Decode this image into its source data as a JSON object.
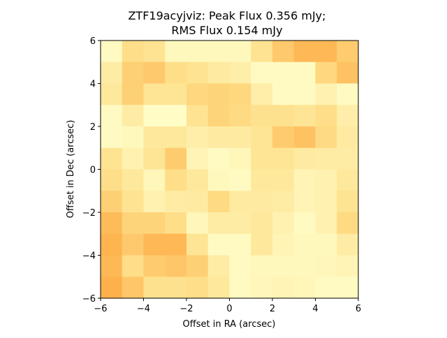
{
  "chart_data": {
    "type": "heatmap",
    "title": "ZTF19acyjviz: Peak Flux 0.356 mJy;",
    "subtitle": "RMS Flux 0.154 mJy",
    "xlabel": "Offset in RA (arcsec)",
    "ylabel": "Offset in Dec (arcsec)",
    "xlim": [
      -6,
      6
    ],
    "ylim": [
      -6,
      6
    ],
    "xticks": [
      -6,
      -4,
      -2,
      0,
      2,
      4,
      6
    ],
    "yticks": [
      -6,
      -4,
      -2,
      0,
      2,
      4,
      6
    ],
    "xtick_labels": [
      "−6",
      "−4",
      "−2",
      "0",
      "2",
      "4",
      "6"
    ],
    "ytick_labels": [
      "−6",
      "−4",
      "−2",
      "0",
      "2",
      "4",
      "6"
    ],
    "colormap": [
      "#ffffcc",
      "#fee08b",
      "#feb24c",
      "#fd8d3c"
    ],
    "grid": false,
    "rows_top_to_bottom": [
      [
        0.05,
        0.35,
        0.3,
        0.08,
        0.08,
        0.08,
        0.08,
        0.3,
        0.5,
        0.62,
        0.62,
        0.48
      ],
      [
        0.2,
        0.45,
        0.5,
        0.35,
        0.3,
        0.22,
        0.18,
        0.05,
        0.05,
        0.05,
        0.4,
        0.55
      ],
      [
        0.25,
        0.45,
        0.28,
        0.28,
        0.4,
        0.42,
        0.4,
        0.18,
        0.05,
        0.05,
        0.15,
        0.05
      ],
      [
        0.05,
        0.2,
        0.03,
        0.03,
        0.3,
        0.42,
        0.38,
        0.32,
        0.32,
        0.28,
        0.35,
        0.18
      ],
      [
        0.05,
        0.08,
        0.25,
        0.25,
        0.18,
        0.22,
        0.22,
        0.28,
        0.48,
        0.55,
        0.38,
        0.22
      ],
      [
        0.3,
        0.15,
        0.28,
        0.48,
        0.12,
        0.05,
        0.1,
        0.28,
        0.28,
        0.22,
        0.2,
        0.2
      ],
      [
        0.35,
        0.25,
        0.1,
        0.35,
        0.25,
        0.08,
        0.05,
        0.25,
        0.25,
        0.12,
        0.15,
        0.25
      ],
      [
        0.45,
        0.3,
        0.15,
        0.2,
        0.22,
        0.38,
        0.22,
        0.22,
        0.2,
        0.12,
        0.15,
        0.3
      ],
      [
        0.6,
        0.42,
        0.42,
        0.35,
        0.1,
        0.2,
        0.2,
        0.25,
        0.15,
        0.05,
        0.15,
        0.38
      ],
      [
        0.65,
        0.5,
        0.62,
        0.62,
        0.28,
        0.05,
        0.05,
        0.25,
        0.12,
        0.08,
        0.08,
        0.2
      ],
      [
        0.62,
        0.35,
        0.48,
        0.52,
        0.45,
        0.2,
        0.05,
        0.08,
        0.08,
        0.08,
        0.1,
        0.12
      ],
      [
        0.68,
        0.52,
        0.32,
        0.32,
        0.35,
        0.25,
        0.05,
        0.1,
        0.12,
        0.1,
        0.05,
        0.05
      ]
    ]
  }
}
